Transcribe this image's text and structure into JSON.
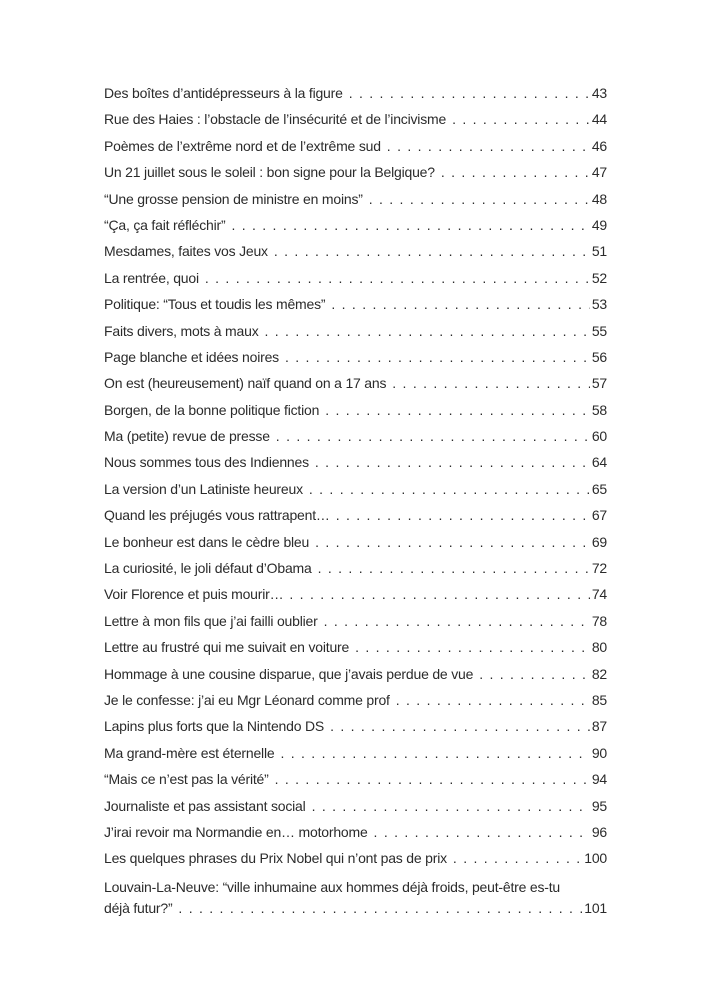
{
  "entries": [
    {
      "title": "Des boîtes d’antidépresseurs à la figure",
      "page": "43"
    },
    {
      "title": "Rue des Haies : l’obstacle de l’insécurité et de l’incivisme",
      "page": "44"
    },
    {
      "title": "Poèmes de l’extrême nord et de l’extrême sud",
      "page": "46"
    },
    {
      "title": "Un 21 juillet sous le soleil : bon signe pour la Belgique?",
      "page": "47"
    },
    {
      "title": "“Une grosse pension de ministre en moins”",
      "page": "48"
    },
    {
      "title": "“Ça, ça fait réfléchir”",
      "page": "49"
    },
    {
      "title": "Mesdames, faites vos Jeux",
      "page": "51"
    },
    {
      "title": "La rentrée, quoi",
      "page": "52"
    },
    {
      "title": "Politique: “Tous et toudis les mêmes”",
      "page": "53"
    },
    {
      "title": "Faits divers, mots à maux",
      "page": "55"
    },
    {
      "title": "Page blanche et idées noires",
      "page": "56"
    },
    {
      "title": "On est (heureusement) naïf quand on a 17 ans",
      "page": "57"
    },
    {
      "title": "Borgen, de la bonne politique fiction",
      "page": "58"
    },
    {
      "title": "Ma (petite) revue de presse",
      "page": "60"
    },
    {
      "title": "Nous sommes tous des Indiennes",
      "page": "64"
    },
    {
      "title": "La version d’un Latiniste heureux",
      "page": "65"
    },
    {
      "title": "Quand les préjugés vous rattrapent…",
      "page": "67"
    },
    {
      "title": "Le bonheur est dans le cèdre bleu",
      "page": "69"
    },
    {
      "title": "La curiosité, le joli défaut d’Obama",
      "page": "72"
    },
    {
      "title": "Voir Florence et puis mourir…",
      "page": "74"
    },
    {
      "title": "Lettre à mon fils que j’ai failli oublier",
      "page": "78"
    },
    {
      "title": "Lettre au frustré qui me suivait en voiture",
      "page": "80"
    },
    {
      "title": "Hommage à une cousine disparue, que j’avais perdue de vue",
      "page": "82"
    },
    {
      "title": "Je le confesse: j’ai eu Mgr Léonard comme prof",
      "page": "85"
    },
    {
      "title": "Lapins plus forts que la Nintendo DS",
      "page": "87"
    },
    {
      "title": "Ma grand-mère est éternelle",
      "page": "90"
    },
    {
      "title": "“Mais ce n’est pas la vérité”",
      "page": "94"
    },
    {
      "title": "Journaliste et pas assistant social",
      "page": "95"
    },
    {
      "title": "J’irai revoir ma Normandie en… motorhome",
      "page": "96"
    },
    {
      "title": "Les quelques phrases du Prix Nobel qui n’ont pas de prix",
      "page": "100"
    }
  ],
  "last_entry": {
    "title_line1": "Louvain-La-Neuve: “ville inhumaine aux hommes déjà froids, peut-être es-tu",
    "title_line2": "déjà futur?”",
    "page": "101"
  }
}
